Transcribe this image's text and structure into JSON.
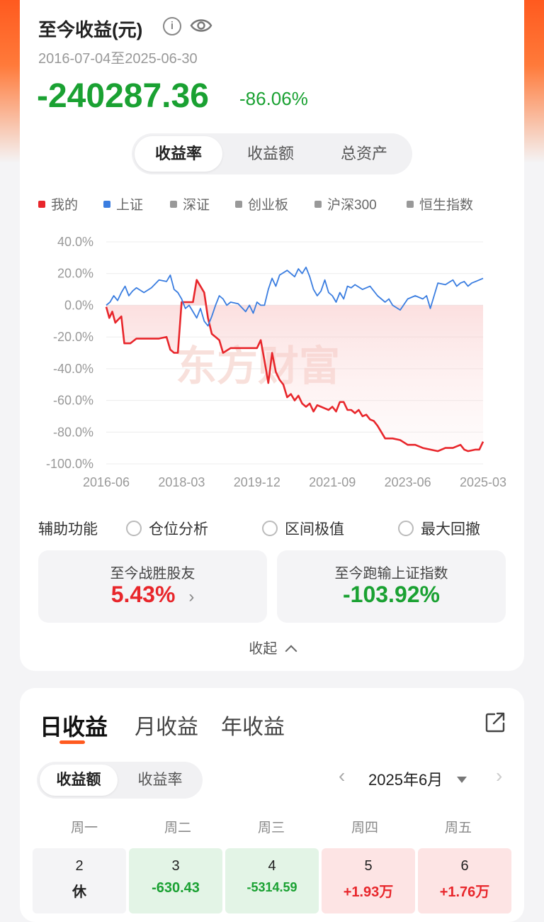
{
  "summary": {
    "title": "至今收益(元)",
    "info_icon": "info-icon",
    "eye_icon": "eye-icon",
    "date_range": "2016-07-04至2025-06-30",
    "total_amount": "-240287.36",
    "total_pct": "-86.06%"
  },
  "chart_tabs": [
    {
      "label": "收益率",
      "active": true
    },
    {
      "label": "收益额",
      "active": false
    },
    {
      "label": "总资产",
      "active": false
    }
  ],
  "legend": [
    {
      "label": "我的",
      "color": "#e8262b"
    },
    {
      "label": "上证",
      "color": "#3a7de0"
    },
    {
      "label": "深证",
      "color": "#999999"
    },
    {
      "label": "创业板",
      "color": "#999999"
    },
    {
      "label": "沪深300",
      "color": "#999999"
    },
    {
      "label": "恒生指数",
      "color": "#999999"
    }
  ],
  "chart_data": {
    "type": "line",
    "watermark": "东方财富",
    "y_ticks": [
      "40.0%",
      "20.0%",
      "0.0%",
      "-20.0%",
      "-40.0%",
      "-60.0%",
      "-80.0%",
      "-100.0%"
    ],
    "x_ticks": [
      "2016-06",
      "2018-03",
      "2019-12",
      "2021-09",
      "2023-06",
      "2025-03"
    ],
    "ylim": [
      -100,
      40
    ],
    "xlim": [
      0,
      1
    ],
    "series": [
      {
        "name": "我的",
        "color": "#e8262b",
        "x": [
          0,
          0.008,
          0.016,
          0.024,
          0.032,
          0.04,
          0.048,
          0.056,
          0.064,
          0.08,
          0.09,
          0.1,
          0.14,
          0.16,
          0.17,
          0.18,
          0.19,
          0.2,
          0.22,
          0.23,
          0.24,
          0.25,
          0.26,
          0.27,
          0.28,
          0.29,
          0.3,
          0.31,
          0.33,
          0.35,
          0.37,
          0.4,
          0.41,
          0.42,
          0.43,
          0.435,
          0.44,
          0.45,
          0.46,
          0.47,
          0.48,
          0.49,
          0.5,
          0.51,
          0.52,
          0.53,
          0.54,
          0.55,
          0.56,
          0.57,
          0.58,
          0.59,
          0.6,
          0.61,
          0.62,
          0.63,
          0.64,
          0.65,
          0.66,
          0.67,
          0.68,
          0.69,
          0.7,
          0.71,
          0.72,
          0.73,
          0.74,
          0.76,
          0.78,
          0.8,
          0.82,
          0.84,
          0.86,
          0.88,
          0.9,
          0.92,
          0.94,
          0.95,
          0.96,
          0.98,
          0.99,
          1.0
        ],
        "y": [
          -1,
          -8,
          -4,
          -11,
          -9,
          -7,
          -24,
          -24,
          -24,
          -21,
          -21,
          -21,
          -21,
          -20,
          -28,
          -30,
          -30,
          2,
          2,
          2,
          16,
          12,
          8,
          -8,
          -18,
          -20,
          -22,
          -30,
          -27,
          -27,
          -27,
          -27,
          -22,
          -35,
          -49,
          -40,
          -30,
          -42,
          -47,
          -50,
          -58,
          -56,
          -60,
          -57,
          -62,
          -64,
          -62,
          -67,
          -63,
          -64,
          -65,
          -66,
          -64,
          -67,
          -61,
          -61,
          -66,
          -66,
          -68,
          -66,
          -70,
          -69,
          -72,
          -73,
          -76,
          -80,
          -84,
          -84,
          -85,
          -88,
          -88,
          -90,
          -91,
          -92,
          -90,
          -90,
          -88,
          -91,
          -92,
          -91,
          -91,
          -86
        ]
      },
      {
        "name": "上证",
        "color": "#3a7de0",
        "x": [
          0,
          0.01,
          0.02,
          0.03,
          0.04,
          0.05,
          0.06,
          0.07,
          0.08,
          0.1,
          0.12,
          0.14,
          0.16,
          0.17,
          0.18,
          0.19,
          0.2,
          0.21,
          0.22,
          0.23,
          0.24,
          0.25,
          0.26,
          0.27,
          0.28,
          0.29,
          0.3,
          0.31,
          0.32,
          0.33,
          0.35,
          0.37,
          0.38,
          0.39,
          0.4,
          0.41,
          0.42,
          0.43,
          0.44,
          0.45,
          0.46,
          0.48,
          0.5,
          0.51,
          0.52,
          0.53,
          0.54,
          0.55,
          0.56,
          0.57,
          0.58,
          0.59,
          0.6,
          0.61,
          0.62,
          0.63,
          0.64,
          0.65,
          0.66,
          0.68,
          0.7,
          0.72,
          0.74,
          0.75,
          0.76,
          0.78,
          0.8,
          0.82,
          0.84,
          0.85,
          0.86,
          0.88,
          0.9,
          0.92,
          0.93,
          0.94,
          0.95,
          0.96,
          0.97,
          0.98,
          1.0
        ],
        "y": [
          0,
          2,
          6,
          3,
          8,
          12,
          6,
          9,
          11,
          8,
          11,
          16,
          15,
          19,
          10,
          8,
          4,
          -2,
          0,
          -4,
          -8,
          -2,
          -10,
          -13,
          -7,
          0,
          6,
          4,
          0,
          2,
          1,
          -4,
          0,
          -5,
          2,
          0,
          0,
          10,
          17,
          12,
          19,
          22,
          18,
          23,
          20,
          24,
          18,
          10,
          6,
          9,
          16,
          8,
          6,
          2,
          8,
          4,
          12,
          11,
          13,
          10,
          12,
          6,
          2,
          4,
          0,
          -3,
          4,
          6,
          4,
          6,
          -2,
          14,
          13,
          16,
          12,
          14,
          15,
          12,
          14,
          15,
          17
        ]
      }
    ]
  },
  "assist": {
    "label": "辅助功能",
    "options": [
      "仓位分析",
      "区间极值",
      "最大回撤"
    ]
  },
  "stats": [
    {
      "label": "至今战胜股友",
      "value": "5.43%",
      "color": "#e8262b",
      "has_arrow": true
    },
    {
      "label": "至今跑输上证指数",
      "value": "-103.92%",
      "color": "#1aa132",
      "has_arrow": false
    }
  ],
  "collapse_label": "收起",
  "period_tabs": [
    {
      "label": "日收益",
      "active": true
    },
    {
      "label": "月收益",
      "active": false
    },
    {
      "label": "年收益",
      "active": false
    }
  ],
  "calendar_tabs": [
    {
      "label": "收益额",
      "active": true
    },
    {
      "label": "收益率",
      "active": false
    }
  ],
  "month": "2025年6月",
  "weekdays": [
    "周一",
    "周二",
    "周三",
    "周四",
    "周五"
  ],
  "days": [
    {
      "day": "2",
      "value": "休",
      "status": "rest"
    },
    {
      "day": "3",
      "value": "-630.43",
      "status": "loss"
    },
    {
      "day": "4",
      "value": "-5314.59",
      "status": "loss"
    },
    {
      "day": "5",
      "value": "+1.93万",
      "status": "gain"
    },
    {
      "day": "6",
      "value": "+1.76万",
      "status": "gain"
    }
  ]
}
